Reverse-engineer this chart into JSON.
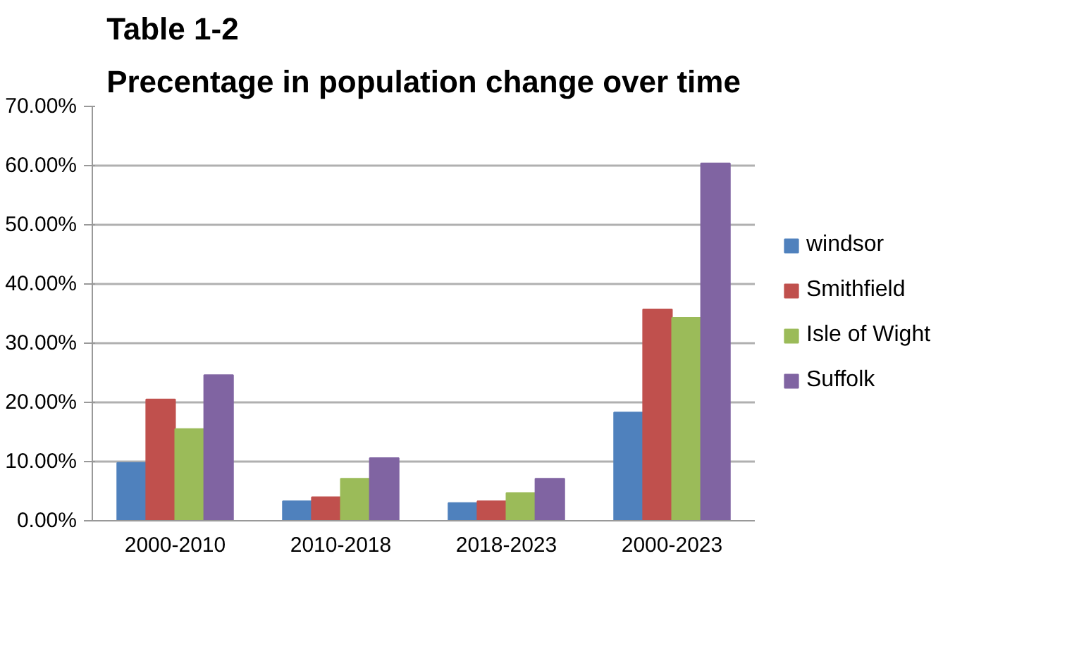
{
  "chart_data": {
    "type": "bar",
    "title": "Table 1-2\nPrecentage in population change over time",
    "categories": [
      "2000-2010",
      "2010-2018",
      "2018-2023",
      "2000-2023"
    ],
    "series": [
      {
        "name": "windsor",
        "color": "#4f81bd",
        "values": [
          9.8,
          3.3,
          3.0,
          18.3
        ]
      },
      {
        "name": "Smithfield",
        "color": "#c0504d",
        "values": [
          20.5,
          4.0,
          3.3,
          35.7
        ]
      },
      {
        "name": "Isle of Wight",
        "color": "#9bbb59",
        "values": [
          15.5,
          7.1,
          4.7,
          34.3
        ]
      },
      {
        "name": "Suffolk",
        "color": "#8064a2",
        "values": [
          24.6,
          10.6,
          7.1,
          60.4
        ]
      }
    ],
    "ylim": [
      0,
      70
    ],
    "yticks": [
      {
        "value": 0,
        "label": "0.00%"
      },
      {
        "value": 10,
        "label": "10.00%"
      },
      {
        "value": 20,
        "label": "20.00%"
      },
      {
        "value": 30,
        "label": "30.00%"
      },
      {
        "value": 40,
        "label": "40.00%"
      },
      {
        "value": 50,
        "label": "50.00%"
      },
      {
        "value": 60,
        "label": "60.00%"
      },
      {
        "value": 70,
        "label": "70.00%"
      }
    ],
    "grid": "y",
    "legend": "right"
  }
}
